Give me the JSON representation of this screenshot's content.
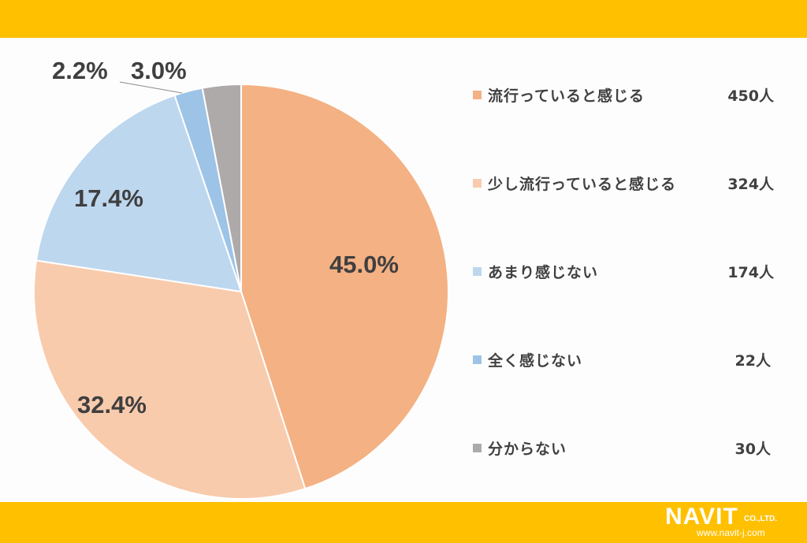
{
  "chart_data": {
    "type": "pie",
    "title": "",
    "categories": [
      "流行っていると感じる",
      "少し流行っていると感じる",
      "あまり感じない",
      "全く感じない",
      "分からない"
    ],
    "values": [
      450,
      324,
      174,
      22,
      30
    ],
    "percentages": [
      45.0,
      32.4,
      17.4,
      2.2,
      3.0
    ],
    "percent_labels": [
      "45.0%",
      "32.4%",
      "17.4%",
      "2.2%",
      "3.0%"
    ],
    "count_labels": [
      "450人",
      "324人",
      "174人",
      "22人",
      "30人"
    ],
    "colors": [
      "#f4b183",
      "#f8cbad",
      "#bdd7ee",
      "#9dc3e6",
      "#aeaaaa"
    ],
    "start_angle": "12 o'clock, clockwise",
    "legend_position": "right",
    "total": 1000
  },
  "legend": {
    "items": [
      {
        "label": "流行っていると感じる",
        "count": "450人",
        "color": "#f4b183"
      },
      {
        "label": "少し流行っていると感じる",
        "count": "324人",
        "color": "#f8cbad"
      },
      {
        "label": "あまり感じない",
        "count": "174人",
        "color": "#bdd7ee"
      },
      {
        "label": "全く感じない",
        "count": "22人",
        "color": "#9dc3e6"
      },
      {
        "label": "分からない",
        "count": "30人",
        "color": "#aeaaaa"
      }
    ]
  },
  "labels": {
    "p0": "45.0%",
    "p1": "32.4%",
    "p2": "17.4%",
    "p3": "2.2%",
    "p4": "3.0%"
  },
  "logo": {
    "name": "NAVIT",
    "suffix": "CO.,LTD.",
    "url": "www.navit-j.com"
  },
  "theme": {
    "band_color": "#ffc000",
    "text_color": "#404040"
  }
}
